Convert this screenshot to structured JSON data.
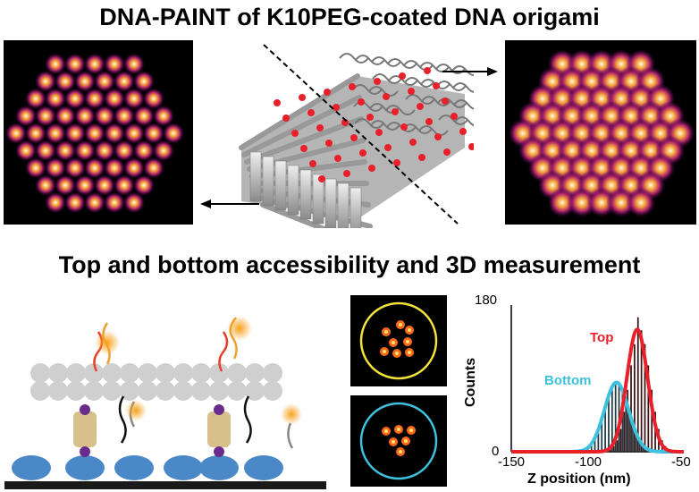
{
  "title": "DNA-PAINT of K10PEG-coated DNA origami",
  "subtitle": "Top and bottom accessibility and 3D measurement",
  "colors": {
    "top": "#e8202a",
    "bottom": "#3ec1dc",
    "ring_yellow": "#f2e33a",
    "ring_cyan": "#3ec1dc",
    "bars": "#3a1212"
  },
  "chart_data": {
    "type": "bar",
    "xlabel": "Z position (nm)",
    "ylabel": "Counts",
    "xlim": [
      -150,
      -50
    ],
    "ylim": [
      0,
      180
    ],
    "xticks": [
      "-150",
      "-100",
      "-50"
    ],
    "yticks": [
      "0",
      "180"
    ],
    "bin_width": 2,
    "x": [
      -112,
      -110,
      -108,
      -106,
      -104,
      -102,
      -100,
      -98,
      -96,
      -94,
      -92,
      -90,
      -88,
      -86,
      -84,
      -82,
      -80,
      -78,
      -76,
      -74,
      -72,
      -70,
      -68,
      -66,
      -64,
      -62,
      -60,
      -58,
      -56
    ],
    "series": [
      {
        "name": "Bottom",
        "values": [
          0,
          1,
          2,
          4,
          8,
          15,
          25,
          37,
          52,
          66,
          78,
          84,
          84,
          78,
          66,
          52,
          37,
          25,
          15,
          8,
          4,
          2,
          1,
          0,
          0,
          0,
          0,
          0,
          0
        ],
        "fit_mean": -89,
        "fit_sigma": 7,
        "fit_amplitude": 85
      },
      {
        "name": "Top",
        "values": [
          0,
          0,
          0,
          0,
          0,
          0,
          0,
          0,
          1,
          3,
          7,
          14,
          28,
          49,
          76,
          106,
          132,
          165,
          149,
          132,
          106,
          76,
          49,
          28,
          14,
          7,
          3,
          1,
          0
        ],
        "fit_mean": -77,
        "fit_sigma": 6,
        "fit_amplitude": 150
      }
    ],
    "legend": [
      "Top",
      "Bottom"
    ]
  }
}
